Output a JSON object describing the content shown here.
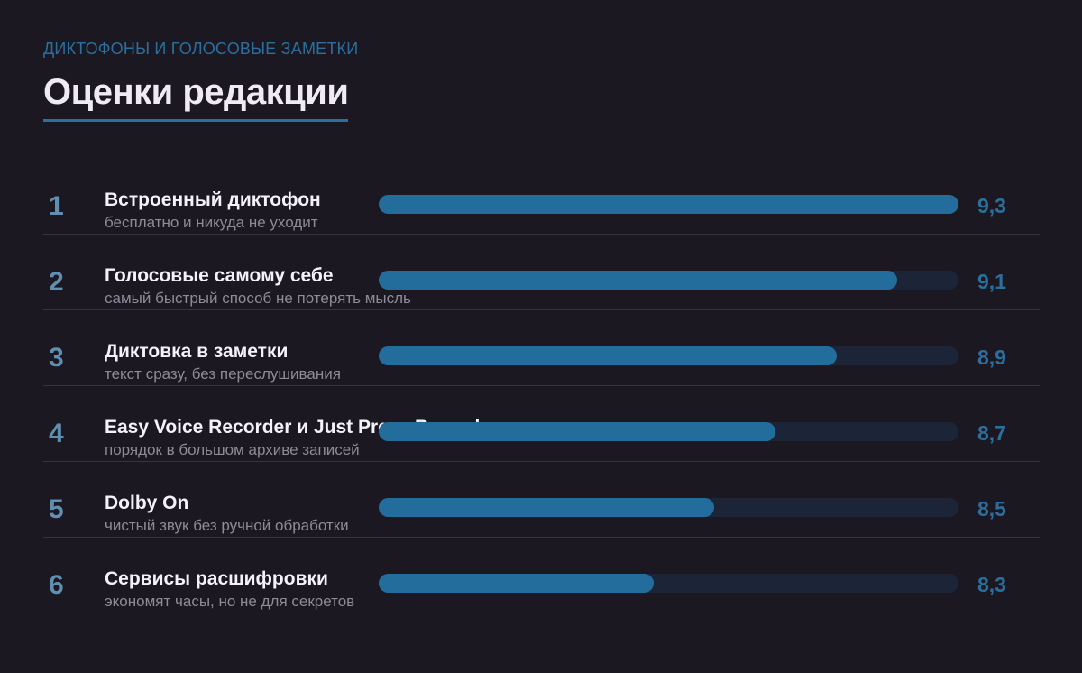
{
  "header": {
    "eyebrow": "ДИКТОФОНЫ И ГОЛОСОВЫЕ ЗАМЕТКИ",
    "title": "Оценки редакции"
  },
  "colors": {
    "background": "#1c1822",
    "accent": "#2a6f9e",
    "bar_fill": "#236d9c",
    "bar_track": "#1c2538"
  },
  "chart_data": {
    "type": "bar",
    "orientation": "horizontal",
    "title": "Оценки редакции",
    "xlim": [
      7.4,
      9.3
    ],
    "categories": [
      "Встроенный диктофон",
      "Голосовые самому себе",
      "Диктовка в заметки",
      "Easy Voice Recorder и Just Press Record",
      "Dolby On",
      "Сервисы расшифровки"
    ],
    "values": [
      9.3,
      9.1,
      8.9,
      8.7,
      8.5,
      8.3
    ],
    "items": [
      {
        "rank": "1",
        "name": "Встроенный диктофон",
        "subtitle": "бесплатно и никуда не уходит",
        "value": 9.3,
        "label": "9,3"
      },
      {
        "rank": "2",
        "name": "Голосовые самому себе",
        "subtitle": "самый быстрый способ не потерять мысль",
        "value": 9.1,
        "label": "9,1"
      },
      {
        "rank": "3",
        "name": "Диктовка в заметки",
        "subtitle": "текст сразу, без переслушивания",
        "value": 8.9,
        "label": "8,9"
      },
      {
        "rank": "4",
        "name": "Easy Voice Recorder и Just Press Record",
        "subtitle": "порядок в большом архиве записей",
        "value": 8.7,
        "label": "8,7"
      },
      {
        "rank": "5",
        "name": "Dolby On",
        "subtitle": "чистый звук без ручной обработки",
        "value": 8.5,
        "label": "8,5"
      },
      {
        "rank": "6",
        "name": "Сервисы расшифровки",
        "subtitle": "экономят часы, но не для секретов",
        "value": 8.3,
        "label": "8,3"
      }
    ]
  }
}
